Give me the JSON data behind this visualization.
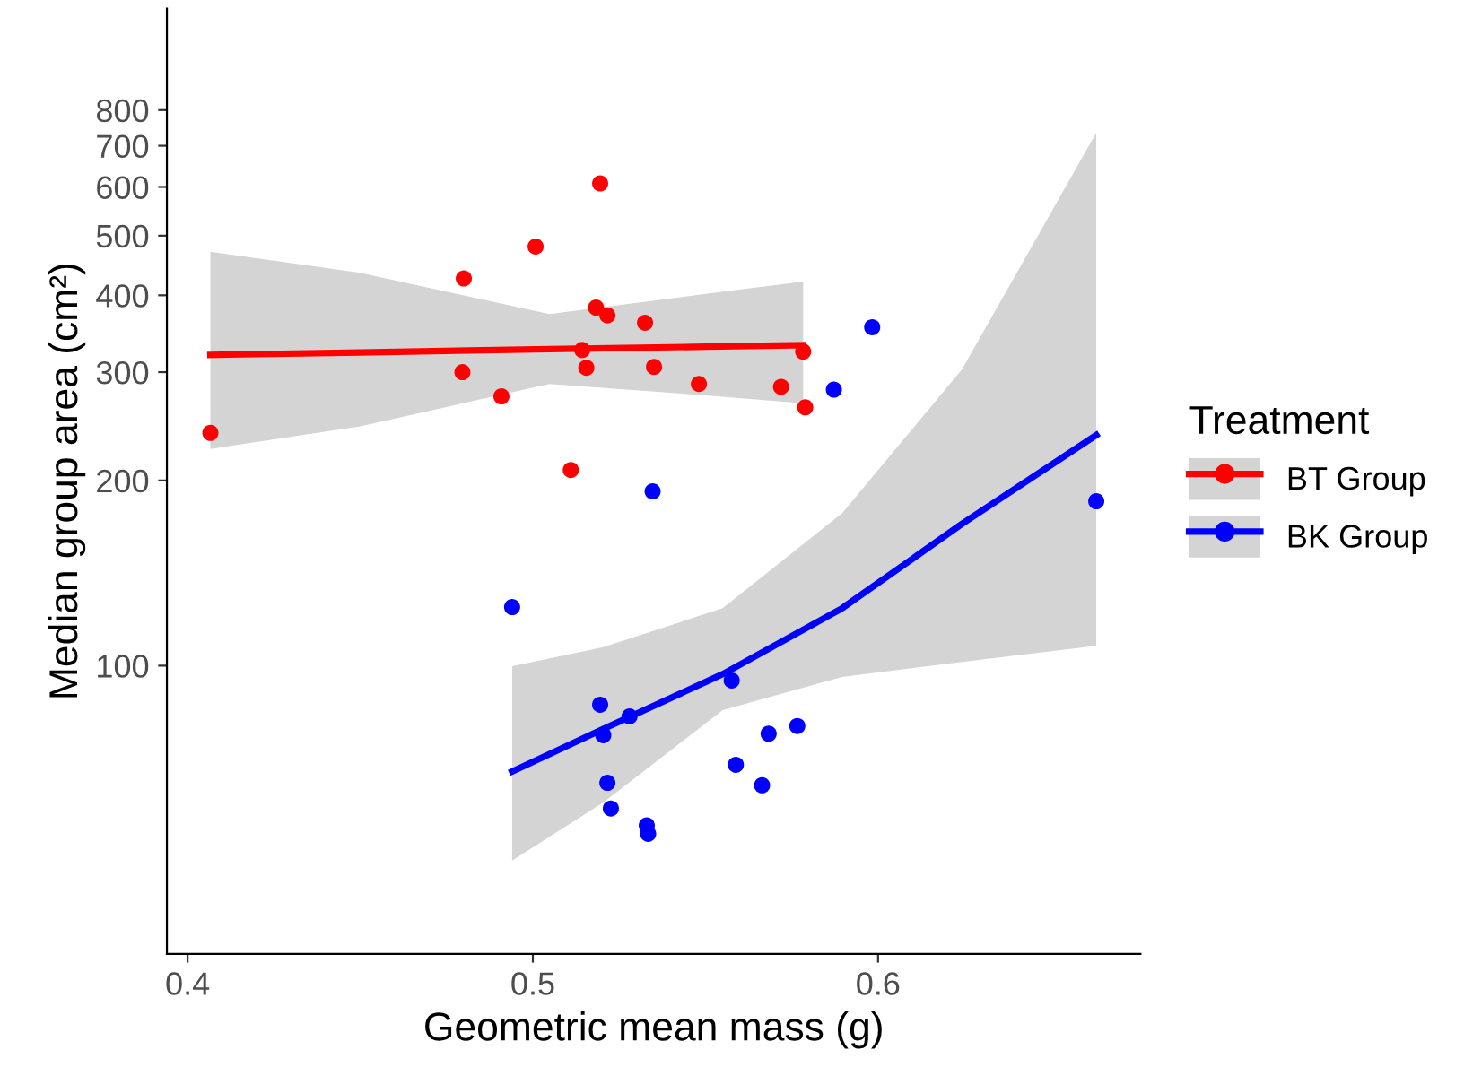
{
  "chart_data": {
    "type": "scatter",
    "xlabel": "Geometric mean mass (g)",
    "ylabel": "Median group area (cm²)",
    "legend_title": "Treatment",
    "log": "y",
    "xlim": [
      0.394,
      0.676
    ],
    "ylim": [
      34,
      1170
    ],
    "xticks": [
      0.4,
      0.5,
      0.6
    ],
    "yticks": [
      100,
      200,
      300,
      400,
      500,
      600,
      700,
      800
    ],
    "grid": false,
    "legend": "right",
    "series": [
      {
        "name": "BT Group",
        "marker": "circle",
        "color": "#ff0000",
        "x": [
          0.4066,
          0.48,
          0.5008,
          0.5195,
          0.5183,
          0.5216,
          0.5325,
          0.5143,
          0.5783,
          0.4796,
          0.5155,
          0.5351,
          0.4909,
          0.5481,
          0.5719,
          0.5789,
          0.511
        ],
        "values": [
          239,
          426,
          480,
          608,
          382,
          371,
          361,
          326,
          324,
          300,
          305,
          306,
          274,
          287,
          284,
          263,
          208
        ]
      },
      {
        "name": "BK Group",
        "marker": "circle",
        "color": "#0000ff",
        "x": [
          0.5872,
          0.5347,
          0.5983,
          0.494,
          0.6632,
          0.5576,
          0.5195,
          0.528,
          0.5204,
          0.5683,
          0.5766,
          0.5588,
          0.5664,
          0.5216,
          0.5226,
          0.533,
          0.5334
        ],
        "values": [
          281,
          192,
          355,
          124.5,
          185,
          94.6,
          86.4,
          82.7,
          77.1,
          77.5,
          79.8,
          69.0,
          63.9,
          64.5,
          58.6,
          55.0,
          53.3
        ]
      },
      {
        "type": "line",
        "marker": "none",
        "color": "#ff0000",
        "x": [
          0.4066,
          0.45,
          0.5048,
          0.55,
          0.5783
        ],
        "values": [
          320,
          323,
          327,
          330,
          332
        ],
        "lower": [
          225,
          245,
          287,
          275,
          267
        ],
        "upper": [
          471,
          435,
          373,
          402,
          421
        ]
      },
      {
        "type": "line",
        "marker": "none",
        "color": "#0000ff",
        "x": [
          0.494,
          0.5204,
          0.555,
          0.5896,
          0.6243,
          0.6632
        ],
        "values": [
          67.3,
          78.9,
          96.9,
          124,
          170,
          237
        ],
        "lower": [
          48.2,
          59.9,
          84.7,
          95.9,
          101.4,
          107.7
        ],
        "upper": [
          99.8,
          107.2,
          124,
          177,
          303,
          735
        ]
      }
    ]
  }
}
